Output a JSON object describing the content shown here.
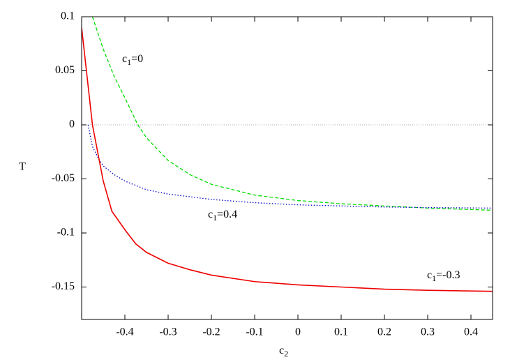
{
  "chart_data": {
    "type": "line",
    "ylabel": "T",
    "xlabel": [
      "c",
      "2"
    ],
    "xlim": [
      -0.5,
      0.45
    ],
    "ylim": [
      -0.18,
      0.1
    ],
    "xticks": [
      -0.4,
      -0.3,
      -0.2,
      -0.1,
      0,
      0.1,
      0.2,
      0.3,
      0.4
    ],
    "yticks": [
      0.1,
      0.05,
      0,
      -0.05,
      -0.1,
      -0.15
    ],
    "zero_line": true,
    "series": [
      {
        "name": [
          "c",
          "1",
          "=0"
        ],
        "color": "#00dd00",
        "dash": "dashed",
        "x": [
          -0.475,
          -0.45,
          -0.425,
          -0.4,
          -0.37,
          -0.35,
          -0.3,
          -0.25,
          -0.2,
          -0.1,
          0,
          0.1,
          0.2,
          0.3,
          0.45
        ],
        "values": [
          0.1,
          0.07,
          0.045,
          0.025,
          0.0,
          -0.012,
          -0.033,
          -0.046,
          -0.055,
          -0.065,
          -0.07,
          -0.073,
          -0.075,
          -0.077,
          -0.079
        ]
      },
      {
        "name": [
          "c",
          "1",
          "=0.4"
        ],
        "color": "#0000cc",
        "dash": "dotted",
        "x": [
          -0.485,
          -0.475,
          -0.46,
          -0.45,
          -0.425,
          -0.4,
          -0.35,
          -0.3,
          -0.2,
          -0.1,
          0,
          0.1,
          0.2,
          0.3,
          0.45
        ],
        "values": [
          0.0,
          -0.02,
          -0.032,
          -0.038,
          -0.046,
          -0.052,
          -0.06,
          -0.064,
          -0.069,
          -0.072,
          -0.074,
          -0.075,
          -0.076,
          -0.0765,
          -0.077
        ]
      },
      {
        "name": [
          "c",
          "1",
          "=-0.3"
        ],
        "color": "#ee0000",
        "dash": "solid",
        "x": [
          -0.5,
          -0.475,
          -0.45,
          -0.43,
          -0.4,
          -0.375,
          -0.35,
          -0.3,
          -0.25,
          -0.2,
          -0.1,
          0,
          0.1,
          0.2,
          0.3,
          0.45
        ],
        "values": [
          0.09,
          0.0,
          -0.052,
          -0.08,
          -0.097,
          -0.11,
          -0.118,
          -0.128,
          -0.134,
          -0.139,
          -0.145,
          -0.148,
          -0.15,
          -0.152,
          -0.153,
          -0.154
        ]
      }
    ]
  }
}
